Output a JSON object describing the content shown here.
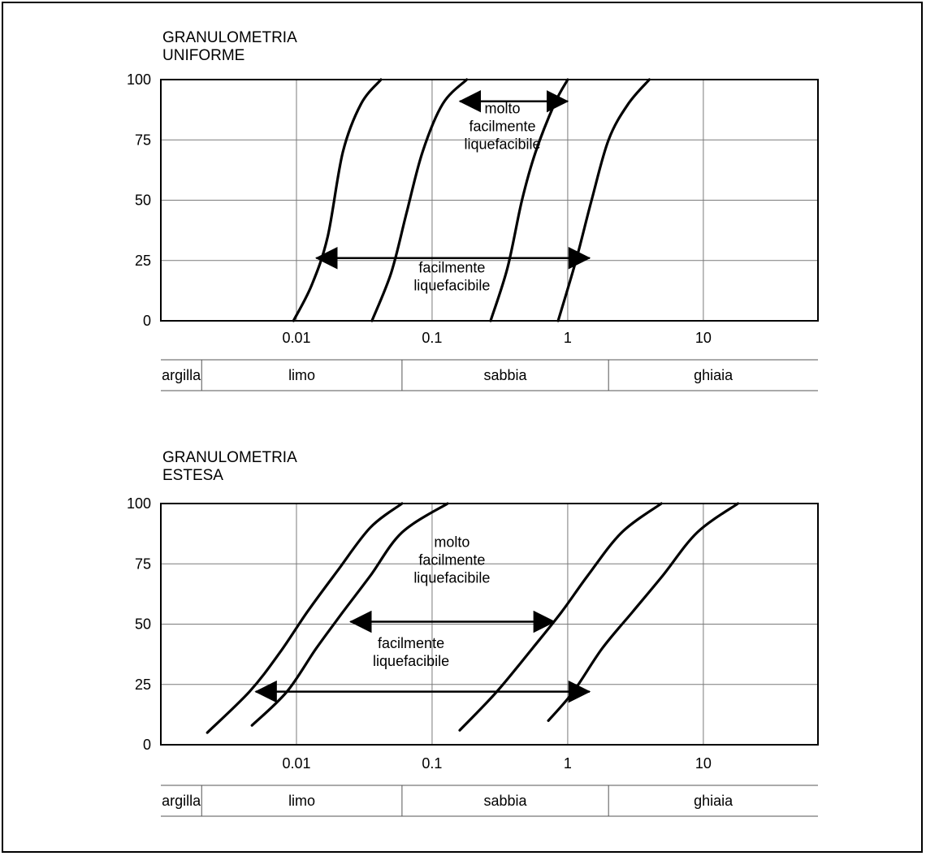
{
  "chart_data": [
    {
      "type": "line",
      "title": [
        "GRANULOMETRIA",
        "UNIFORME"
      ],
      "xscale": "log",
      "xlim": [
        0.001,
        70
      ],
      "ylim": [
        0,
        100
      ],
      "grid": true,
      "yticks": [
        {
          "value": 0,
          "label": "0"
        },
        {
          "value": 25,
          "label": "25"
        },
        {
          "value": 50,
          "label": "50"
        },
        {
          "value": 75,
          "label": "75"
        },
        {
          "value": 100,
          "label": "100"
        }
      ],
      "xticks": [
        {
          "value": 0.01,
          "label": "0.01"
        },
        {
          "value": 0.1,
          "label": "0.1"
        },
        {
          "value": 1,
          "label": "1"
        },
        {
          "value": 10,
          "label": "10"
        }
      ],
      "series": [
        {
          "x": [
            0.0095,
            0.013,
            0.017,
            0.022,
            0.03,
            0.042
          ],
          "y": [
            0,
            15,
            35,
            70,
            90,
            100
          ]
        },
        {
          "x": [
            0.036,
            0.05,
            0.065,
            0.085,
            0.12,
            0.18
          ],
          "y": [
            0,
            20,
            45,
            70,
            90,
            100
          ]
        },
        {
          "x": [
            0.27,
            0.36,
            0.46,
            0.58,
            0.8,
            1.0
          ],
          "y": [
            0,
            22,
            50,
            70,
            90,
            100
          ]
        },
        {
          "x": [
            0.85,
            1.15,
            1.5,
            2.0,
            2.8,
            4.0
          ],
          "y": [
            0,
            25,
            50,
            75,
            90,
            100
          ]
        }
      ],
      "ranges": [
        {
          "x1": 0.16,
          "x2": 1.0,
          "y": 91,
          "label": [
            "molto",
            "facilmente",
            "liquefacibile"
          ],
          "label_x": 0.33,
          "label_y": 86
        },
        {
          "x1": 0.014,
          "x2": 1.45,
          "y": 26,
          "label": [
            "facilmente",
            "liquefacibile"
          ],
          "label_x": 0.14,
          "label_y": 20
        }
      ],
      "soil_classes": [
        "argilla",
        "limo",
        "sabbia",
        "ghiaia"
      ],
      "soil_bounds": [
        0.002,
        0.06,
        2.0
      ]
    },
    {
      "type": "line",
      "title": [
        "GRANULOMETRIA",
        "ESTESA"
      ],
      "xscale": "log",
      "xlim": [
        0.001,
        70
      ],
      "ylim": [
        0,
        100
      ],
      "grid": true,
      "yticks": [
        {
          "value": 0,
          "label": "0"
        },
        {
          "value": 25,
          "label": "25"
        },
        {
          "value": 50,
          "label": "50"
        },
        {
          "value": 75,
          "label": "75"
        },
        {
          "value": 100,
          "label": "100"
        }
      ],
      "xticks": [
        {
          "value": 0.01,
          "label": "0.01"
        },
        {
          "value": 0.1,
          "label": "0.1"
        },
        {
          "value": 1,
          "label": "1"
        },
        {
          "value": 10,
          "label": "10"
        }
      ],
      "series": [
        {
          "x": [
            0.0022,
            0.0045,
            0.0075,
            0.012,
            0.02,
            0.035,
            0.06
          ],
          "y": [
            5,
            22,
            38,
            55,
            72,
            90,
            100
          ]
        },
        {
          "x": [
            0.0047,
            0.0085,
            0.014,
            0.022,
            0.035,
            0.06,
            0.13
          ],
          "y": [
            8,
            22,
            40,
            55,
            70,
            88,
            100
          ]
        },
        {
          "x": [
            0.16,
            0.3,
            0.55,
            0.9,
            1.4,
            2.5,
            4.9
          ],
          "y": [
            6,
            22,
            40,
            55,
            70,
            88,
            100
          ]
        },
        {
          "x": [
            0.72,
            1.1,
            1.8,
            3.0,
            5.0,
            9.0,
            18
          ],
          "y": [
            10,
            22,
            40,
            55,
            70,
            88,
            100
          ]
        }
      ],
      "ranges": [
        {
          "x1": 0.025,
          "x2": 0.8,
          "y": 51,
          "label": [
            "molto",
            "facilmente",
            "liquefacibile"
          ],
          "label_x": 0.14,
          "label_y": 82
        },
        {
          "x1": 0.005,
          "x2": 1.45,
          "y": 22,
          "label": [
            "facilmente",
            "liquefacibile"
          ],
          "label_x": 0.07,
          "label_y": 40
        }
      ],
      "soil_classes": [
        "argilla",
        "limo",
        "sabbia",
        "ghiaia"
      ],
      "soil_bounds": [
        0.002,
        0.06,
        2.0
      ]
    }
  ]
}
